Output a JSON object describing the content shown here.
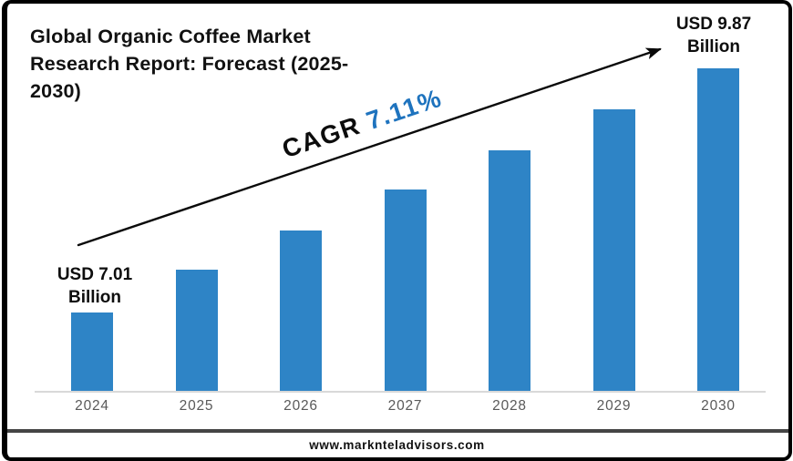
{
  "header": {
    "title_lines": [
      "Global Organic Coffee Market",
      "Research Report: Forecast (2025-",
      "2030)"
    ]
  },
  "cagr": {
    "label": "CAGR",
    "value": "7.11%"
  },
  "annotations": {
    "first": {
      "line1": "USD 7.01",
      "line2": "Billion"
    },
    "last": {
      "line1": "USD 9.87",
      "line2": "Billion"
    }
  },
  "footer": {
    "website": "www.marknteladvisors.com"
  },
  "colors": {
    "bar": "#2E84C6",
    "cagr_value": "#1E73BE",
    "axis_line": "#D9D9D9",
    "year_label": "#595959",
    "border": "#000000"
  },
  "chart_data": {
    "type": "bar",
    "title": "Global Organic Coffee Market Research Report: Forecast (2025-2030)",
    "categories": [
      "2024",
      "2025",
      "2026",
      "2027",
      "2028",
      "2029",
      "2030"
    ],
    "values": [
      7.01,
      7.51,
      7.97,
      8.45,
      8.91,
      9.39,
      9.87
    ],
    "values_labeled": {
      "2024": 7.01,
      "2030": 9.87
    },
    "values_note": "Only 2024 and 2030 are labeled on the chart; intermediate values estimated from bar heights",
    "unit": "USD Billion",
    "cagr_text": "CAGR 7.11%",
    "data_labels": [
      {
        "category": "2024",
        "label": "USD 7.01 Billion"
      },
      {
        "category": "2030",
        "label": "USD 9.87 Billion"
      }
    ],
    "xlabel": "",
    "ylabel": "",
    "y_axis_visible": false,
    "gridlines": false,
    "legend": false,
    "value_axis_start_estimate": 6.08
  }
}
